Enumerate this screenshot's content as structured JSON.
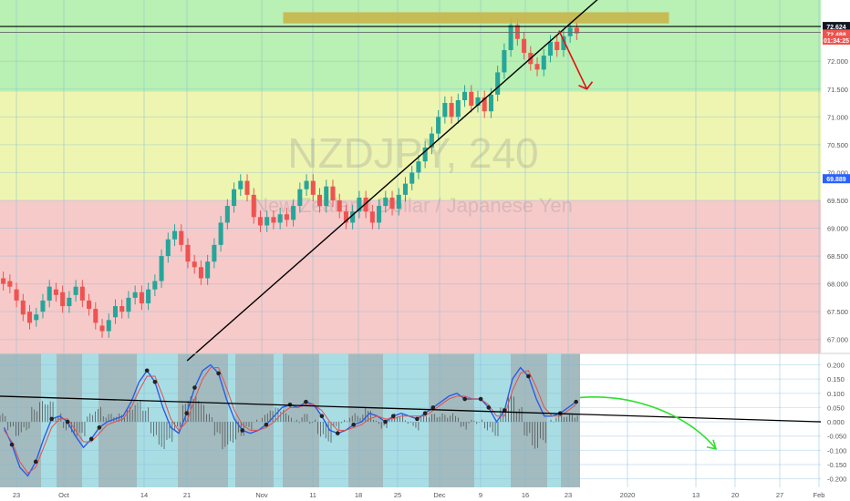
{
  "chart_data": {
    "type": "line",
    "watermark": {
      "symbol": "NZDJPY, 240",
      "description": "New Zealand Dollar / Japanese Yen"
    },
    "price_panel": {
      "ylim": [
        66.75,
        73.1
      ],
      "y_ticks": [
        "72.000",
        "71.500",
        "71.000",
        "70.500",
        "70.000",
        "69.500",
        "69.000",
        "68.500",
        "68.000",
        "67.500",
        "67.000"
      ],
      "y_tick_values": [
        72.0,
        71.5,
        71.0,
        70.5,
        70.0,
        69.5,
        69.0,
        68.5,
        68.0,
        67.5,
        67.0
      ],
      "zones": [
        {
          "from": 71.45,
          "to": 73.1,
          "color": "#b9f0b3"
        },
        {
          "from": 69.5,
          "to": 71.45,
          "color": "#eef5b0"
        },
        {
          "from": 66.75,
          "to": 69.5,
          "color": "#f7caca"
        }
      ],
      "resistance_box": {
        "x_from": 0.345,
        "x_to": 0.815,
        "y_from": 72.68,
        "y_to": 72.88,
        "color": "#c9b54a"
      },
      "horizontal_lines": [
        72.624,
        72.52
      ],
      "trendline": {
        "from": [
          0.228,
          66.62
        ],
        "to": [
          0.735,
          73.2
        ]
      },
      "projection_arrow": {
        "from": [
          0.681,
          72.55
        ],
        "to": [
          0.715,
          71.5
        ],
        "color": "#e01010"
      },
      "candles": [
        [
          68.1,
          68.0
        ],
        [
          68.05,
          67.95
        ],
        [
          67.9,
          67.7
        ],
        [
          67.7,
          67.45
        ],
        [
          67.5,
          67.3
        ],
        [
          67.35,
          67.45
        ],
        [
          67.5,
          67.7
        ],
        [
          67.7,
          67.95
        ],
        [
          67.9,
          67.8
        ],
        [
          67.85,
          67.6
        ],
        [
          67.6,
          67.75
        ],
        [
          67.8,
          67.95
        ],
        [
          67.95,
          67.7
        ],
        [
          67.7,
          67.55
        ],
        [
          67.55,
          67.3
        ],
        [
          67.25,
          67.15
        ],
        [
          67.15,
          67.35
        ],
        [
          67.4,
          67.6
        ],
        [
          67.6,
          67.5
        ],
        [
          67.5,
          67.75
        ],
        [
          67.75,
          67.85
        ],
        [
          67.85,
          67.65
        ],
        [
          67.65,
          67.9
        ],
        [
          67.9,
          68.05
        ],
        [
          68.05,
          68.5
        ],
        [
          68.5,
          68.8
        ],
        [
          68.8,
          68.95
        ],
        [
          68.95,
          68.7
        ],
        [
          68.7,
          68.4
        ],
        [
          68.4,
          68.3
        ],
        [
          68.3,
          68.1
        ],
        [
          68.1,
          68.4
        ],
        [
          68.4,
          68.7
        ],
        [
          68.7,
          69.1
        ],
        [
          69.1,
          69.4
        ],
        [
          69.4,
          69.7
        ],
        [
          69.7,
          69.85
        ],
        [
          69.85,
          69.6
        ],
        [
          69.6,
          69.2
        ],
        [
          69.2,
          69.05
        ],
        [
          69.05,
          69.2
        ],
        [
          69.2,
          69.1
        ],
        [
          69.1,
          69.25
        ],
        [
          69.25,
          69.15
        ],
        [
          69.15,
          69.4
        ],
        [
          69.4,
          69.7
        ],
        [
          69.7,
          69.85
        ],
        [
          69.85,
          69.6
        ],
        [
          69.6,
          69.4
        ],
        [
          69.4,
          69.75
        ],
        [
          69.75,
          69.5
        ],
        [
          69.5,
          69.3
        ],
        [
          69.3,
          69.1
        ],
        [
          69.1,
          69.3
        ],
        [
          69.3,
          69.55
        ],
        [
          69.55,
          69.3
        ],
        [
          69.3,
          69.1
        ],
        [
          69.1,
          69.4
        ],
        [
          69.4,
          69.55
        ],
        [
          69.55,
          69.35
        ],
        [
          69.35,
          69.6
        ],
        [
          69.6,
          69.8
        ],
        [
          69.8,
          70.0
        ],
        [
          70.0,
          70.2
        ],
        [
          70.2,
          70.45
        ],
        [
          70.45,
          70.7
        ],
        [
          70.7,
          71.0
        ],
        [
          71.0,
          71.25
        ],
        [
          71.25,
          71.0
        ],
        [
          71.0,
          71.3
        ],
        [
          71.3,
          71.45
        ],
        [
          71.45,
          71.2
        ],
        [
          71.2,
          71.35
        ],
        [
          71.35,
          71.1
        ],
        [
          71.1,
          71.4
        ],
        [
          71.4,
          71.8
        ],
        [
          71.8,
          72.2
        ],
        [
          72.2,
          72.65
        ],
        [
          72.65,
          72.4
        ],
        [
          72.4,
          72.15
        ],
        [
          72.15,
          71.95
        ],
        [
          71.95,
          71.85
        ],
        [
          71.85,
          72.1
        ],
        [
          72.1,
          72.35
        ],
        [
          72.35,
          72.2
        ],
        [
          72.2,
          72.45
        ],
        [
          72.45,
          72.6
        ],
        [
          72.6,
          72.5
        ]
      ]
    },
    "oscillator_panel": {
      "ylim": [
        -0.23,
        0.24
      ],
      "y_ticks": [
        "0.200",
        "0.150",
        "0.100",
        "0.050",
        "0.000",
        "-0.050",
        "-0.100",
        "-0.150",
        "-0.200"
      ],
      "y_tick_values": [
        0.2,
        0.15,
        0.1,
        0.05,
        0.0,
        -0.05,
        -0.1,
        -0.15,
        -0.2
      ],
      "series": [
        {
          "color": "#2b5ce6",
          "values": [
            -0.02,
            -0.08,
            -0.16,
            -0.19,
            -0.14,
            -0.06,
            0.01,
            0.02,
            0.0,
            -0.05,
            -0.09,
            -0.06,
            -0.02,
            0.0,
            0.01,
            0.02,
            0.07,
            0.14,
            0.18,
            0.14,
            0.05,
            -0.02,
            -0.04,
            0.03,
            0.12,
            0.18,
            0.2,
            0.17,
            0.08,
            0.01,
            -0.03,
            -0.04,
            -0.03,
            -0.01,
            0.02,
            0.05,
            0.06,
            0.05,
            0.07,
            0.06,
            0.02,
            -0.03,
            -0.04,
            -0.03,
            -0.01,
            0.0,
            0.03,
            0.02,
            0.0,
            0.02,
            0.03,
            0.02,
            0.01,
            0.03,
            0.05,
            0.07,
            0.09,
            0.1,
            0.08,
            0.08,
            0.08,
            0.05,
            0.0,
            0.04,
            0.15,
            0.19,
            0.16,
            0.08,
            0.02,
            0.02,
            0.03,
            0.05,
            0.07
          ]
        },
        {
          "color": "#e05050",
          "values": [
            -0.03,
            -0.07,
            -0.14,
            -0.18,
            -0.16,
            -0.09,
            -0.02,
            0.01,
            0.01,
            -0.03,
            -0.07,
            -0.07,
            -0.04,
            -0.01,
            0.0,
            0.01,
            0.05,
            0.11,
            0.16,
            0.16,
            0.09,
            0.01,
            -0.03,
            0.0,
            0.08,
            0.15,
            0.19,
            0.19,
            0.12,
            0.04,
            -0.01,
            -0.03,
            -0.03,
            -0.02,
            0.0,
            0.03,
            0.05,
            0.05,
            0.06,
            0.06,
            0.04,
            0.0,
            -0.03,
            -0.03,
            -0.02,
            -0.01,
            0.01,
            0.02,
            0.01,
            0.01,
            0.02,
            0.02,
            0.02,
            0.02,
            0.04,
            0.06,
            0.08,
            0.09,
            0.09,
            0.08,
            0.08,
            0.06,
            0.02,
            0.02,
            0.11,
            0.17,
            0.18,
            0.12,
            0.05,
            0.02,
            0.02,
            0.04,
            0.06
          ]
        }
      ],
      "trendline": {
        "from": [
          0.0,
          0.09
        ],
        "to": [
          1.0,
          0.0
        ]
      },
      "projection_arrow_color": "#2ee02e"
    },
    "x_tick_labels": [
      "23",
      "Oct",
      "14",
      "21",
      "Nov",
      "11",
      "18",
      "25",
      "Dec",
      "9",
      "16",
      "23",
      "2020",
      "13",
      "20",
      "27",
      "Feb"
    ],
    "price_labels": [
      {
        "label": "72.624",
        "value": 72.624,
        "bg": "#131722",
        "fg": "#ffffff"
      },
      {
        "label": "72.488",
        "value": 72.488,
        "bg": "#ef5350",
        "fg": "#ffffff"
      },
      {
        "label": "01:34:25",
        "value": 72.38,
        "bg": "#ef5350",
        "fg": "#ffffff"
      },
      {
        "label": "69.889",
        "value": 69.889,
        "bg": "#2962ff",
        "fg": "#ffffff"
      }
    ]
  }
}
